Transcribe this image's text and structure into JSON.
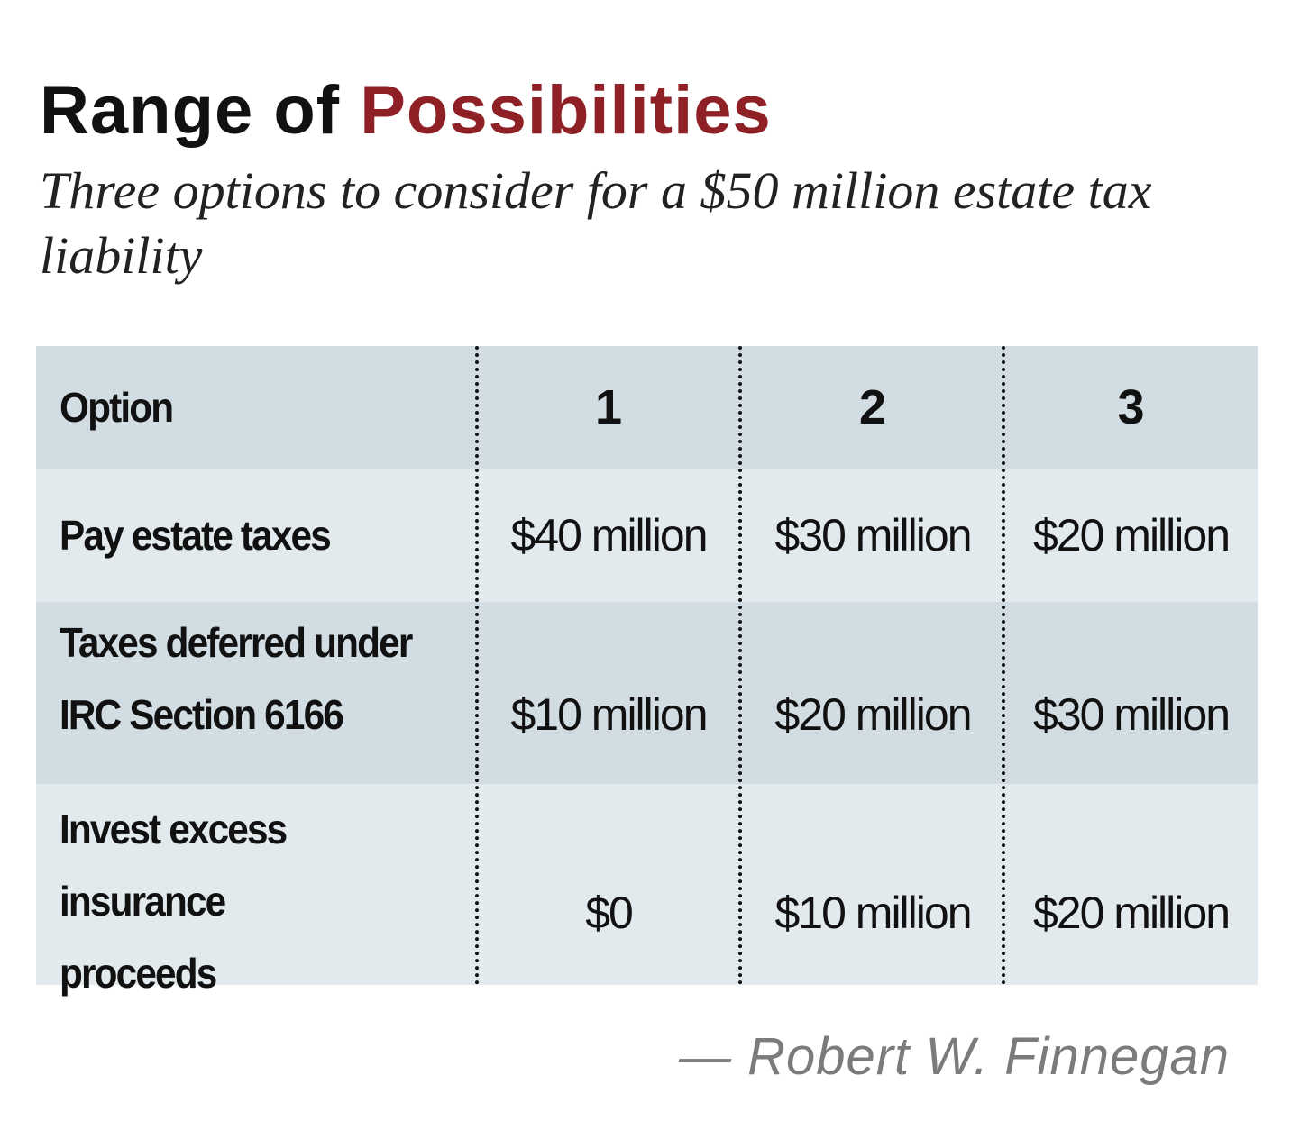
{
  "title": {
    "part1": "Range of ",
    "part2": "Possibilities",
    "accent_color": "#8e2026"
  },
  "subtitle": "Three options to consider for a $50 million estate tax liability",
  "table": {
    "header": [
      "Option",
      "1",
      "2",
      "3"
    ],
    "rows": [
      {
        "label": "Pay estate taxes",
        "values": [
          "$40 million",
          "$30 million",
          "$20 million"
        ]
      },
      {
        "label_lines": [
          "Taxes deferred under",
          "IRC Section 6166"
        ],
        "values": [
          "$10 million",
          "$20 million",
          "$30 million"
        ]
      },
      {
        "label_lines": [
          "Invest excess insurance",
          "proceeds"
        ],
        "values": [
          "$0",
          "$10 million",
          "$20 million"
        ]
      }
    ],
    "header_bg": "#d2dde3",
    "row_bg_light": "#e2eaee",
    "row_bg_dark": "#d2dde3"
  },
  "credit": "— Robert W. Finnegan"
}
